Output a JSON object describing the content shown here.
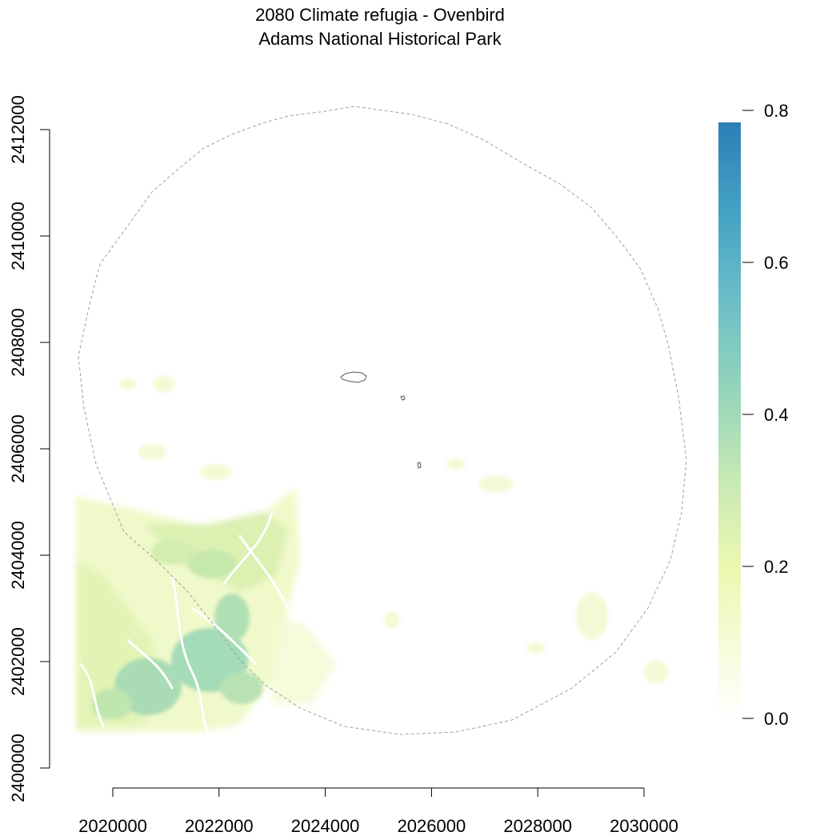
{
  "title": {
    "line1": "2080 Climate refugia - Ovenbird",
    "line2": "Adams National Historical Park"
  },
  "map": {
    "x_ticks": [
      "2020000",
      "2022000",
      "2024000",
      "2026000",
      "2028000",
      "2030000"
    ],
    "y_ticks": [
      "2400000",
      "2402000",
      "2404000",
      "2406000",
      "2408000",
      "2410000",
      "2412000"
    ],
    "legend": {
      "ticks": [
        "0.0",
        "0.2",
        "0.4",
        "0.6",
        "0.8"
      ],
      "range": [
        0.0,
        0.8
      ],
      "colors": [
        "#ffffff",
        "#f6fbd9",
        "#e9f5b0",
        "#c8e9a4",
        "#9fd9b5",
        "#7fcdbb",
        "#5fb5c6",
        "#419dc4",
        "#2c7fb8"
      ]
    },
    "boundary_style": "dashed-gray-circle",
    "park_parcel_outline": "dark-gray-solid"
  }
}
